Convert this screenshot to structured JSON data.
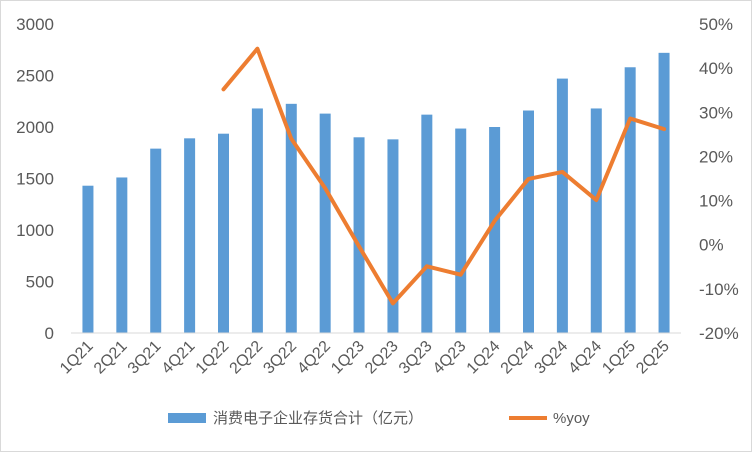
{
  "chart_data": {
    "type": "bar",
    "categories": [
      "1Q21",
      "2Q21",
      "3Q21",
      "4Q21",
      "1Q22",
      "2Q22",
      "3Q22",
      "4Q22",
      "1Q23",
      "2Q23",
      "3Q23",
      "4Q23",
      "1Q24",
      "2Q24",
      "3Q24",
      "4Q24",
      "1Q25",
      "2Q25"
    ],
    "series": [
      {
        "name": "消费电子企业存货合计（亿元）",
        "type": "bar",
        "axis": "left",
        "color": "#5b9bd5",
        "values": [
          1430,
          1510,
          1790,
          1890,
          1935,
          2180,
          2225,
          2130,
          1900,
          1880,
          2120,
          1985,
          2000,
          2160,
          2470,
          2180,
          2580,
          2720
        ]
      },
      {
        "name": "%yoy",
        "type": "line",
        "axis": "right",
        "color": "#ed7d31",
        "values": [
          null,
          null,
          null,
          null,
          35.2,
          44.4,
          24.0,
          12.8,
          -0.4,
          -13.3,
          -4.9,
          -6.8,
          5.4,
          14.9,
          16.5,
          10.1,
          28.6,
          26.2
        ]
      }
    ],
    "y_left": {
      "min": 0,
      "max": 3000,
      "ticks": [
        "0",
        "500",
        "1000",
        "1500",
        "2000",
        "2500",
        "3000"
      ],
      "tick_values": [
        0,
        500,
        1000,
        1500,
        2000,
        2500,
        3000
      ]
    },
    "y_right": {
      "min": -20,
      "max": 50,
      "ticks": [
        "-20%",
        "-10%",
        "0%",
        "10%",
        "20%",
        "30%",
        "40%",
        "50%"
      ],
      "tick_values": [
        -20,
        -10,
        0,
        10,
        20,
        30,
        40,
        50
      ]
    },
    "grid": false,
    "legend": "bottom",
    "title": "",
    "xlabel": "",
    "ylabel": ""
  }
}
